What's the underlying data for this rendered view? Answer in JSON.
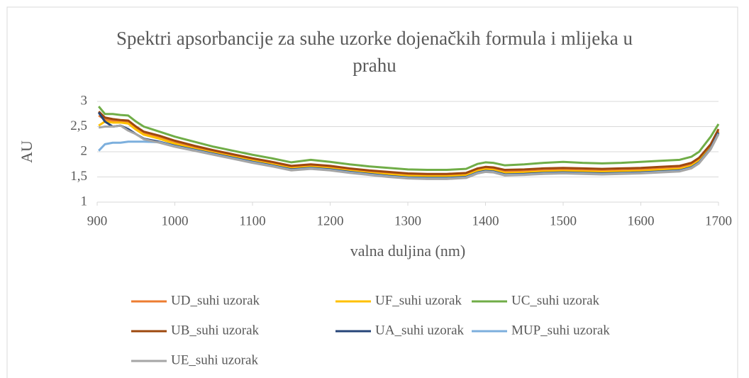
{
  "chart_data": {
    "type": "line",
    "title": "Spektri apsorbancije za suhe uzorke dojenačkih formula i mlijeka u prahu",
    "xlabel": "valna duljina (nm)",
    "ylabel": "AU",
    "xlim": [
      900,
      1700
    ],
    "xticks": [
      900,
      1000,
      1100,
      1200,
      1300,
      1400,
      1500,
      1600,
      1700
    ],
    "ylim": [
      1,
      3
    ],
    "yticks": [
      1,
      {
        "value": 1.5,
        "label": "1,5"
      },
      2,
      {
        "value": 2.5,
        "label": "2,5"
      },
      3
    ],
    "grid": true,
    "x": [
      902,
      910,
      920,
      930,
      940,
      950,
      960,
      980,
      1000,
      1025,
      1050,
      1075,
      1100,
      1125,
      1150,
      1175,
      1200,
      1225,
      1250,
      1275,
      1300,
      1325,
      1350,
      1375,
      1390,
      1400,
      1410,
      1425,
      1450,
      1475,
      1500,
      1525,
      1550,
      1575,
      1600,
      1625,
      1650,
      1665,
      1675,
      1690,
      1700
    ],
    "series": [
      {
        "name": "UD_suhi uzorak",
        "color": "#ed7d31",
        "values": [
          2.72,
          2.64,
          2.61,
          2.6,
          2.58,
          2.46,
          2.36,
          2.28,
          2.18,
          2.08,
          2.0,
          1.92,
          1.84,
          1.77,
          1.69,
          1.72,
          1.69,
          1.64,
          1.6,
          1.57,
          1.54,
          1.53,
          1.53,
          1.55,
          1.64,
          1.67,
          1.66,
          1.6,
          1.61,
          1.63,
          1.64,
          1.63,
          1.62,
          1.63,
          1.64,
          1.66,
          1.68,
          1.74,
          1.84,
          2.1,
          2.41
        ]
      },
      {
        "name": "UF_suhi uzorak",
        "color": "#ffc000",
        "values": [
          2.52,
          2.6,
          2.58,
          2.58,
          2.56,
          2.44,
          2.34,
          2.26,
          2.16,
          2.06,
          1.98,
          1.9,
          1.82,
          1.75,
          1.67,
          1.7,
          1.67,
          1.62,
          1.58,
          1.55,
          1.52,
          1.51,
          1.51,
          1.53,
          1.62,
          1.65,
          1.64,
          1.58,
          1.59,
          1.61,
          1.62,
          1.61,
          1.6,
          1.61,
          1.62,
          1.64,
          1.66,
          1.72,
          1.82,
          2.08,
          2.39
        ]
      },
      {
        "name": "UC_suhi uzorak",
        "color": "#70ad47",
        "values": [
          2.9,
          2.75,
          2.75,
          2.73,
          2.72,
          2.6,
          2.5,
          2.4,
          2.3,
          2.2,
          2.1,
          2.02,
          1.94,
          1.87,
          1.79,
          1.84,
          1.8,
          1.75,
          1.71,
          1.68,
          1.65,
          1.64,
          1.64,
          1.66,
          1.76,
          1.79,
          1.78,
          1.73,
          1.75,
          1.78,
          1.8,
          1.78,
          1.77,
          1.78,
          1.8,
          1.82,
          1.84,
          1.9,
          2.0,
          2.3,
          2.55
        ]
      },
      {
        "name": "UB_suhi uzorak",
        "color": "#9e480e",
        "values": [
          2.8,
          2.68,
          2.65,
          2.63,
          2.62,
          2.5,
          2.4,
          2.32,
          2.22,
          2.12,
          2.03,
          1.95,
          1.87,
          1.8,
          1.72,
          1.75,
          1.72,
          1.67,
          1.63,
          1.6,
          1.57,
          1.56,
          1.56,
          1.58,
          1.67,
          1.7,
          1.69,
          1.64,
          1.65,
          1.67,
          1.68,
          1.67,
          1.66,
          1.67,
          1.68,
          1.7,
          1.72,
          1.78,
          1.88,
          2.15,
          2.45
        ]
      },
      {
        "name": "UA_suhi uzorak",
        "color": "#264478",
        "values": [
          2.78,
          2.6,
          2.5,
          2.52,
          2.45,
          2.35,
          2.26,
          2.2,
          2.12,
          2.04,
          1.96,
          1.88,
          1.8,
          1.73,
          1.65,
          1.68,
          1.65,
          1.6,
          1.56,
          1.52,
          1.49,
          1.48,
          1.48,
          1.5,
          1.59,
          1.62,
          1.61,
          1.55,
          1.56,
          1.58,
          1.59,
          1.58,
          1.57,
          1.58,
          1.59,
          1.61,
          1.63,
          1.69,
          1.79,
          2.07,
          2.38
        ]
      },
      {
        "name": "MUP_suhi uzorak",
        "color": "#7cafdd",
        "values": [
          2.02,
          2.15,
          2.18,
          2.18,
          2.2,
          2.2,
          2.2,
          2.19,
          2.11,
          2.03,
          1.95,
          1.87,
          1.79,
          1.72,
          1.64,
          1.67,
          1.64,
          1.59,
          1.55,
          1.51,
          1.48,
          1.47,
          1.47,
          1.49,
          1.58,
          1.61,
          1.6,
          1.54,
          1.55,
          1.57,
          1.58,
          1.57,
          1.56,
          1.57,
          1.58,
          1.6,
          1.62,
          1.68,
          1.78,
          2.06,
          2.36
        ]
      },
      {
        "name": "UE_suhi uzorak",
        "color": "#a5a5a5",
        "values": [
          2.48,
          2.5,
          2.5,
          2.52,
          2.42,
          2.35,
          2.25,
          2.18,
          2.1,
          2.02,
          1.94,
          1.86,
          1.78,
          1.71,
          1.63,
          1.66,
          1.63,
          1.58,
          1.54,
          1.5,
          1.47,
          1.46,
          1.46,
          1.48,
          1.57,
          1.6,
          1.59,
          1.53,
          1.54,
          1.56,
          1.57,
          1.56,
          1.55,
          1.56,
          1.57,
          1.59,
          1.61,
          1.67,
          1.77,
          2.05,
          2.35
        ]
      }
    ]
  }
}
